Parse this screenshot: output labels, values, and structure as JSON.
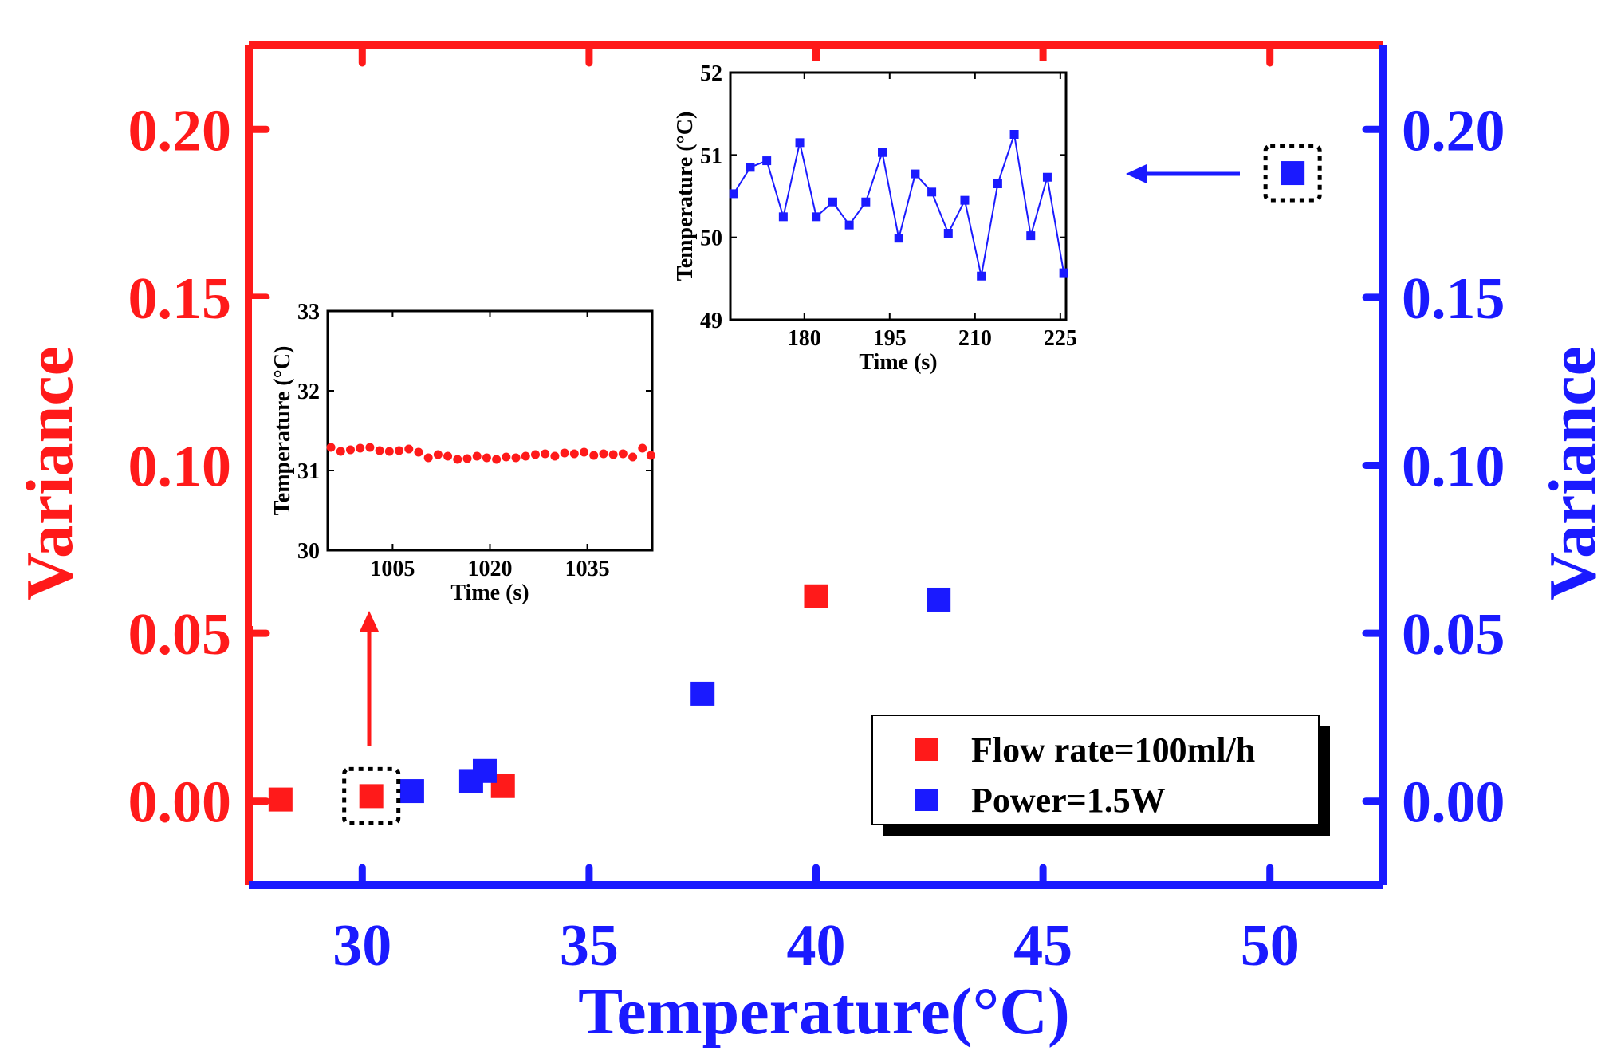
{
  "colors": {
    "red": "#ff1a1a",
    "blue": "#1a1aff",
    "black": "#000000",
    "white": "#ffffff"
  },
  "chart_data": [
    {
      "id": "main",
      "type": "scatter",
      "title": "",
      "xlabel": "Temperature(°C)",
      "ylabel_left": "Variance",
      "ylabel_right": "Variance",
      "xlim": [
        27.5,
        52.5
      ],
      "ylim_left": [
        -0.025,
        0.225
      ],
      "ylim_right": [
        -0.025,
        0.225
      ],
      "xticks": [
        "30",
        "35",
        "40",
        "45",
        "50"
      ],
      "xtick_values": [
        30,
        35,
        40,
        45,
        50
      ],
      "yticks_left": [
        "0.00",
        "0.05",
        "0.10",
        "0.15",
        "0.20"
      ],
      "yticks_right": [
        "0.00",
        "0.05",
        "0.10",
        "0.15",
        "0.20"
      ],
      "ytick_values": [
        0,
        0.05,
        0.1,
        0.15,
        0.2
      ],
      "legend_position": "bottom-right",
      "series": [
        {
          "name": "Flow rate=100ml/h",
          "color": "red",
          "axis": "left",
          "x": [
            28.2,
            30.2,
            33.1,
            40.0
          ],
          "y": [
            0.0005,
            0.0015,
            0.0045,
            0.061
          ]
        },
        {
          "name": "Power=1.5W",
          "color": "blue",
          "axis": "right",
          "x": [
            31.1,
            32.4,
            32.7,
            37.5,
            42.7,
            50.5
          ],
          "y": [
            0.003,
            0.006,
            0.009,
            0.032,
            0.06,
            0.187
          ]
        }
      ],
      "highlighted_points": [
        {
          "series": "Flow rate=100ml/h",
          "x": 30.2,
          "y": 0.0015
        },
        {
          "series": "Power=1.5W",
          "x": 50.5,
          "y": 0.187
        }
      ]
    },
    {
      "id": "inset_flow",
      "type": "scatter",
      "title": "",
      "xlabel": "Time (s)",
      "ylabel": "Temperature (°C)",
      "xlim": [
        995,
        1045
      ],
      "ylim": [
        30,
        33
      ],
      "xticks": [
        "1005",
        "1020",
        "1035"
      ],
      "xtick_values": [
        1005,
        1020,
        1035
      ],
      "yticks": [
        "30",
        "31",
        "32",
        "33"
      ],
      "ytick_values": [
        30,
        31,
        32,
        33
      ],
      "series": [
        {
          "name": "Flow rate=100ml/h",
          "color": "red",
          "x": [
            995.5,
            997,
            998.5,
            1000,
            1001.5,
            1003,
            1004.5,
            1006,
            1007.5,
            1009,
            1010.5,
            1012,
            1013.5,
            1015,
            1016.5,
            1018,
            1019.5,
            1021,
            1022.5,
            1024,
            1025.5,
            1027,
            1028.5,
            1030,
            1031.5,
            1033,
            1034.5,
            1036,
            1037.5,
            1039,
            1040.5,
            1042,
            1043.5,
            1044.8
          ],
          "y": [
            31.29,
            31.24,
            31.26,
            31.28,
            31.29,
            31.25,
            31.24,
            31.25,
            31.27,
            31.23,
            31.16,
            31.2,
            31.18,
            31.14,
            31.15,
            31.18,
            31.16,
            31.14,
            31.17,
            31.16,
            31.18,
            31.2,
            31.21,
            31.18,
            31.22,
            31.21,
            31.23,
            31.19,
            31.21,
            31.2,
            31.21,
            31.17,
            31.28,
            31.19
          ]
        }
      ]
    },
    {
      "id": "inset_power",
      "type": "line",
      "title": "",
      "xlabel": "Time (s)",
      "ylabel": "Temperature (°C)",
      "xlim": [
        167,
        226
      ],
      "ylim": [
        49,
        52
      ],
      "xticks": [
        "180",
        "195",
        "210",
        "225"
      ],
      "xtick_values": [
        180,
        195,
        210,
        225
      ],
      "yticks": [
        "49",
        "50",
        "51",
        "52"
      ],
      "ytick_values": [
        49,
        50,
        51,
        52
      ],
      "series": [
        {
          "name": "Power=1.5W",
          "color": "blue",
          "x": [
            167.6,
            170.5,
            173.4,
            176.3,
            179.2,
            182.1,
            185,
            187.9,
            190.8,
            193.7,
            196.6,
            199.5,
            202.4,
            205.3,
            208.2,
            211.1,
            214,
            216.9,
            219.8,
            222.7,
            225.6
          ],
          "y": [
            50.53,
            50.85,
            50.93,
            50.25,
            51.15,
            50.25,
            50.43,
            50.15,
            50.43,
            51.03,
            49.99,
            50.77,
            50.55,
            50.05,
            50.45,
            49.53,
            50.65,
            51.25,
            50.02,
            50.73,
            49.57
          ],
          "extra_x": [],
          "extra_y": []
        }
      ]
    }
  ]
}
